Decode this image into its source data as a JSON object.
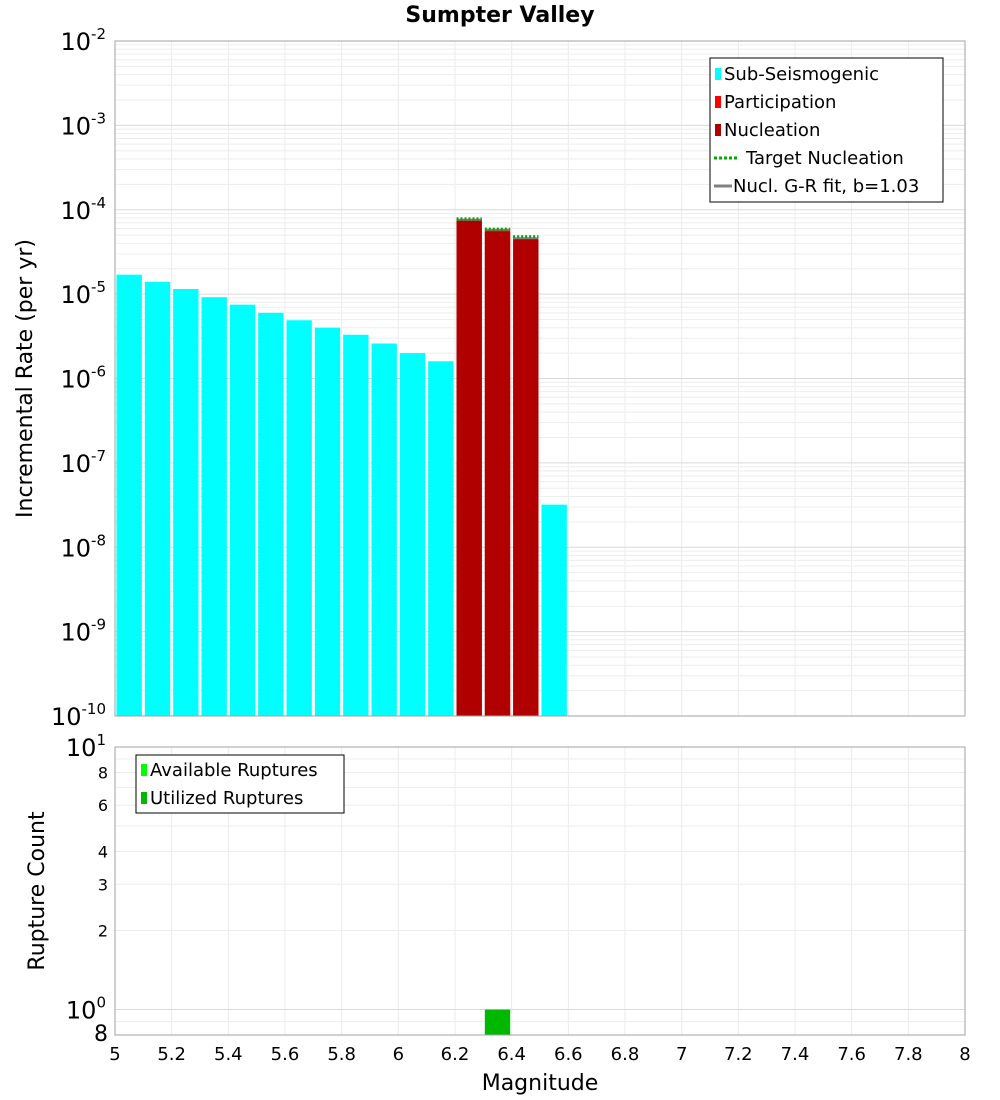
{
  "chart_data": [
    {
      "type": "bar",
      "title": "Sumpter Valley",
      "xlabel": "",
      "ylabel": "Incremental Rate (per yr)",
      "yscale": "log",
      "xlim": [
        5,
        8
      ],
      "ylim": [
        1e-10,
        0.01
      ],
      "y_tick_labels": [
        {
          "base": "10",
          "exp": "-2"
        },
        {
          "base": "10",
          "exp": "-3"
        },
        {
          "base": "10",
          "exp": "-4"
        },
        {
          "base": "10",
          "exp": "-5"
        },
        {
          "base": "10",
          "exp": "-6"
        },
        {
          "base": "10",
          "exp": "-7"
        },
        {
          "base": "10",
          "exp": "-8"
        },
        {
          "base": "10",
          "exp": "-9"
        },
        {
          "base": "10",
          "exp": "-10"
        }
      ],
      "grid": true,
      "legend_position": "top-right",
      "series": [
        {
          "name": "Sub-Seismogenic",
          "color": "#00ffff",
          "points": [
            {
              "x": 5.05,
              "y": 1.7e-05
            },
            {
              "x": 5.15,
              "y": 1.4e-05
            },
            {
              "x": 5.25,
              "y": 1.15e-05
            },
            {
              "x": 5.35,
              "y": 9.2e-06
            },
            {
              "x": 5.45,
              "y": 7.5e-06
            },
            {
              "x": 5.55,
              "y": 6e-06
            },
            {
              "x": 5.65,
              "y": 4.9e-06
            },
            {
              "x": 5.75,
              "y": 4e-06
            },
            {
              "x": 5.85,
              "y": 3.3e-06
            },
            {
              "x": 5.95,
              "y": 2.6e-06
            },
            {
              "x": 6.05,
              "y": 2e-06
            },
            {
              "x": 6.15,
              "y": 1.6e-06
            },
            {
              "x": 6.55,
              "y": 3.2e-08
            }
          ]
        },
        {
          "name": "Participation",
          "color": "#ff0000",
          "points": [
            {
              "x": 6.25,
              "y": 7.5e-05
            },
            {
              "x": 6.35,
              "y": 5.7e-05
            },
            {
              "x": 6.45,
              "y": 4.6e-05
            }
          ]
        },
        {
          "name": "Nucleation",
          "color": "#b00000",
          "points": [
            {
              "x": 6.25,
              "y": 7.5e-05
            },
            {
              "x": 6.35,
              "y": 5.5e-05
            },
            {
              "x": 6.45,
              "y": 4.6e-05
            }
          ]
        },
        {
          "name": "Target Nucleation",
          "color": "#00aa00",
          "style": "dotted",
          "points": [
            {
              "x": 6.25,
              "y": 7.8e-05
            },
            {
              "x": 6.35,
              "y": 5.9e-05
            },
            {
              "x": 6.45,
              "y": 4.8e-05
            }
          ]
        },
        {
          "name": "Nucl. G-R fit, b=1.03",
          "color": "#808080",
          "style": "solid",
          "points": [
            {
              "x": 6.25,
              "y": 7.6e-05
            },
            {
              "x": 6.35,
              "y": 5.8e-05
            },
            {
              "x": 6.45,
              "y": 4.6e-05
            }
          ]
        }
      ]
    },
    {
      "type": "bar",
      "title": "",
      "xlabel": "Magnitude",
      "ylabel": "Rupture Count",
      "yscale": "log",
      "xlim": [
        5,
        8
      ],
      "ylim": [
        0.8,
        10
      ],
      "x_tick_labels": [
        "5",
        "5.2",
        "5.4",
        "5.6",
        "5.8",
        "6",
        "6.2",
        "6.4",
        "6.6",
        "6.8",
        "7",
        "7.2",
        "7.4",
        "7.6",
        "7.8",
        "8"
      ],
      "y_major_labels": [
        {
          "value": 10,
          "base": "10",
          "exp": "1"
        },
        {
          "value": 1,
          "base": "10",
          "exp": "0"
        }
      ],
      "y_minor_labels": [
        {
          "value": 8,
          "label": "8"
        },
        {
          "value": 6,
          "label": "6"
        },
        {
          "value": 4,
          "label": "4"
        },
        {
          "value": 3,
          "label": "3"
        },
        {
          "value": 2,
          "label": "2"
        },
        {
          "value": 0.8,
          "label": "8"
        }
      ],
      "grid": true,
      "legend_position": "top-left",
      "series": [
        {
          "name": "Available Ruptures",
          "color": "#00ff00",
          "points": [
            {
              "x": 6.35,
              "y": 1
            }
          ]
        },
        {
          "name": "Utilized Ruptures",
          "color": "#00b800",
          "points": [
            {
              "x": 6.35,
              "y": 1
            }
          ]
        }
      ]
    }
  ]
}
